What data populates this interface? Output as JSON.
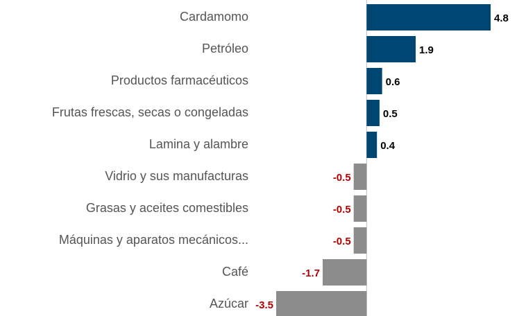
{
  "chart_data": {
    "type": "barh",
    "categories": [
      "Cardamomo",
      "Petróleo",
      "Productos farmacéuticos",
      "Frutas frescas, secas o congeladas",
      "Lamina y alambre",
      "Vidrio y sus manufacturas",
      "Grasas y aceites comestibles",
      "Máquinas y aparatos mecánicos...",
      "Café",
      "Azúcar"
    ],
    "values": [
      4.8,
      1.9,
      0.6,
      0.5,
      0.4,
      -0.5,
      -0.5,
      -0.5,
      -1.7,
      -3.5
    ],
    "positive_color": "#004672",
    "negative_color": "#8c8c8c",
    "positive_label_color": "#000000",
    "negative_label_color": "#b30000"
  }
}
